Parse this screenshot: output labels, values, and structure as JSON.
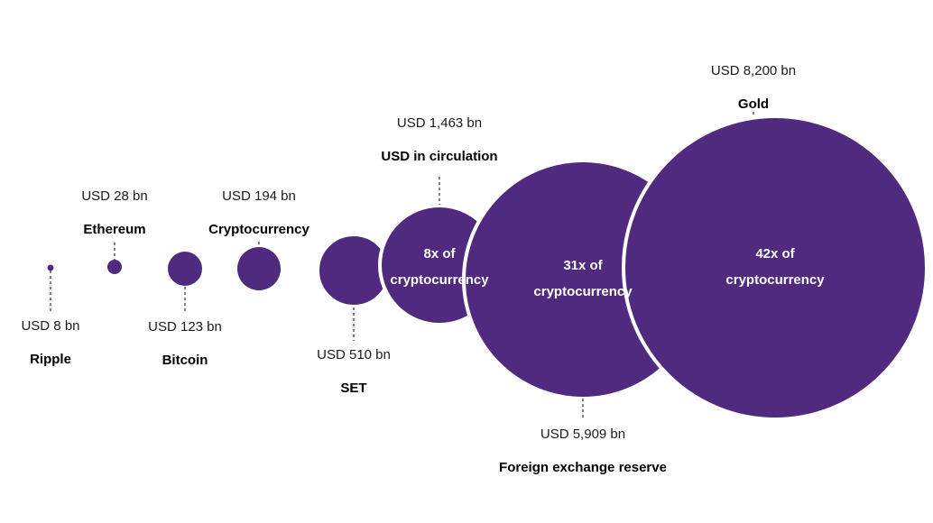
{
  "chart_data": {
    "type": "bubble",
    "unit": "USD bn",
    "colors": {
      "bubble": "#4f2a7e",
      "text_on_bubble": "#ffffff"
    },
    "items": [
      {
        "name": "Ripple",
        "value": 8,
        "value_label": "USD 8 bn",
        "multiple_label": ""
      },
      {
        "name": "Ethereum",
        "value": 28,
        "value_label": "USD 28 bn",
        "multiple_label": ""
      },
      {
        "name": "Bitcoin",
        "value": 123,
        "value_label": "USD 123 bn",
        "multiple_label": ""
      },
      {
        "name": "Cryptocurrency",
        "value": 194,
        "value_label": "USD 194 bn",
        "multiple_label": ""
      },
      {
        "name": "SET",
        "value": 510,
        "value_label": "USD 510 bn",
        "multiple_label": ""
      },
      {
        "name": "USD in circulation",
        "value": 1463,
        "value_label": "USD 1,463 bn",
        "multiple_label": [
          "8x of",
          "cryptocurrency"
        ]
      },
      {
        "name": "Foreign exchange reserve",
        "value": 5909,
        "value_label": "USD 5,909 bn",
        "multiple_label": [
          "31x of",
          "cryptocurrency"
        ]
      },
      {
        "name": "Gold",
        "value": 8200,
        "value_label": "USD 8,200 bn",
        "multiple_label": [
          "42x of",
          "cryptocurrency"
        ]
      }
    ]
  }
}
